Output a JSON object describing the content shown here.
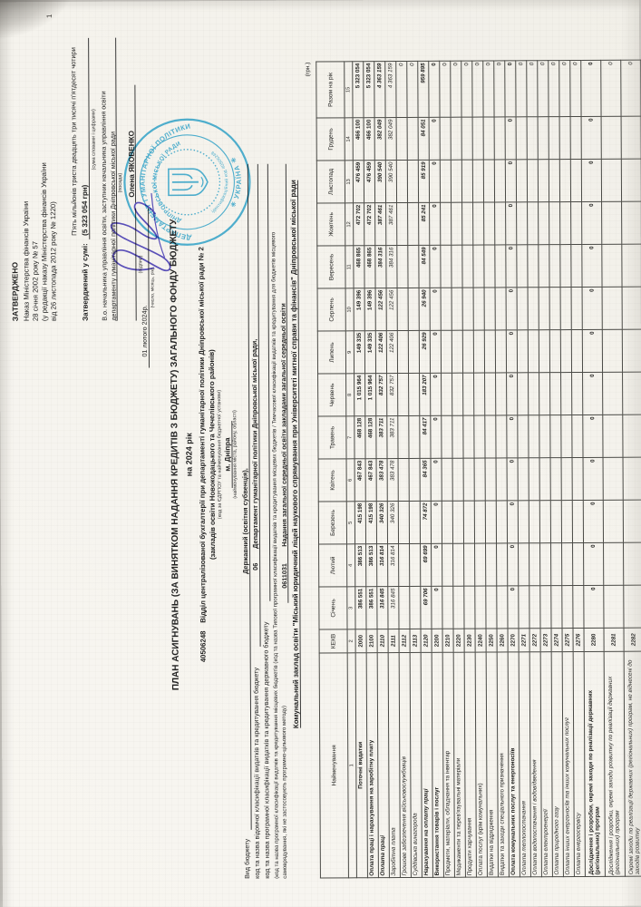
{
  "page": {
    "number": "1"
  },
  "approval": {
    "approved_label": "ЗАТВЕРДЖЕНО",
    "order_line1": "Наказ Міністерства фінансів України",
    "order_line2": "28 січня 2002 року № 57",
    "order_line3": "(у редакції наказу Міністерства фінансів України",
    "order_line4": "від 26 листопада 2012 року № 1220)",
    "approved_sum_label": "Затверджений у сумі:",
    "sum_words": "П'ять мільйонів триста двадцять три тисячі п'ятдесят чотири",
    "sum_figures": "(5 323 054 грн)",
    "sum_caption": "(сума словами і цифрами)",
    "position_line1": "В.о. начальника управління  освіти, заступник начальника управління  освіти",
    "position_line2": "департаменту гуманітарної політики Дніпровської міської ради",
    "position_caption": "(посада)",
    "signer_name": "Олена ЯКОВЕНКО",
    "signature_caption": "(підпис)",
    "date": "01 лютого 2024р.",
    "date_caption": "(число, місяць, рік)"
  },
  "title": {
    "line1": "ПЛАН АСИГНУВАНЬ (ЗА ВИНЯТКОМ НАДАННЯ КРЕДИТІВ З БЮДЖЕТУ) ЗАГАЛЬНОГО ФОНДУ БЮДЖЕТУ",
    "line2": "на 2024 рік",
    "edrpou": "40506248",
    "org": "Відділ централізованої бухгалтерії при департаменті гуманітарної політики Дніпровської міської ради № 2",
    "org2": "(закладів освіти Новокодацького та Чечелівського районів)",
    "org_caption": "(код за ЄДРПОУ та найменування бюджетної установи)",
    "city": "м. Дніпра",
    "city_caption": "(найменування міста, району, області)"
  },
  "classification": {
    "budget_type_label": "Вид бюджету",
    "budget_type_value": "Державний  (освітня субвенція),",
    "departmental_label": "код та назва відомчої класифікації видатків та кредитування бюджету",
    "departmental_code": "06",
    "departmental_value": "Департамент гуманітарної політики Дніпровської міської ради,",
    "program_state_label": "код та назва програмної класифікації видатків та кредитування державного бюджету",
    "note_line1": "(код та назва програмної класифікації видатків та кредитування місцевих бюджетів (код та назва Типової програмної класифікації видатків та кредитування місцевих бюджетів / Тимчасової класифікації видатків та кредитування для бюджетів місцевого",
    "note_line2": "самоврядування, які не застосовують програмно-цільового методу)",
    "program_code": "0611031",
    "program_value": "Надання загальної середньої освіти закладами загальної середньої освіти",
    "institution": "Комунальний заклад  освіти \"Міський юридичний ліцей наукового спрямування при Університеті митної справи та фінансів\" Дніпровської міської ради",
    "currency_note": "(грн.)"
  },
  "stamp": {
    "ring_outer_top": "ДЕПАРТАМЕНТ ГУМАНІТАРНОЇ ПОЛІТИКИ",
    "ring_outer_bottom": "✳ УКРАЇНА ✳",
    "ring_inner_top": "ДНІПРОВСЬКОЇ МІСЬКОЇ РАДИ",
    "ring_inner_bottom": "ідентифікаційний код 40506248",
    "color": "#2aa7d6"
  },
  "signature_ink_color": "#4a3fc0",
  "table": {
    "columns": [
      "Найменування",
      "КЕКВ",
      "Січень",
      "Лютий",
      "Березень",
      "Квітень",
      "Травень",
      "Червень",
      "Липень",
      "Серпень",
      "Вересень",
      "Жовтень",
      "Листопад",
      "Грудень",
      "Разом на рік"
    ],
    "column_numbers": [
      "1",
      "2",
      "3",
      "4",
      "5",
      "6",
      "7",
      "8",
      "9",
      "10",
      "11",
      "12",
      "13",
      "14",
      "15"
    ],
    "rows": [
      {
        "name": "Поточні видатки",
        "code": "2000",
        "style": "bold",
        "center": true,
        "tall": false,
        "values": [
          "386 551",
          "386 513",
          "415 198",
          "467 843",
          "468 128",
          "1 015 964",
          "149 335",
          "149 396",
          "468 865",
          "472 702",
          "476 459",
          "466 100"
        ],
        "total": "5 323 054"
      },
      {
        "name": "Оплата праці і нарахування на заробітну плату",
        "code": "2100",
        "style": "bold",
        "center": false,
        "tall": false,
        "values": [
          "386 551",
          "386 513",
          "415 198",
          "467 843",
          "468 128",
          "1 015 964",
          "149 335",
          "149 396",
          "468 865",
          "472 702",
          "476 459",
          "466 100"
        ],
        "total": "5 323 054"
      },
      {
        "name": "Оплата праці",
        "code": "2110",
        "style": "bolditalic",
        "center": false,
        "tall": false,
        "values": [
          "316 845",
          "316 814",
          "340 326",
          "383 478",
          "383 711",
          "832 757",
          "122 406",
          "122 456",
          "384 316",
          "387 461",
          "390 540",
          "382 049"
        ],
        "total": "4 363 159"
      },
      {
        "name": "Заробітна плата",
        "code": "2111",
        "style": "italic",
        "center": false,
        "tall": false,
        "values": [
          "316 845",
          "316 814",
          "340 326",
          "383 478",
          "383 711",
          "832 757",
          "122 406",
          "122 456",
          "384 316",
          "387 461",
          "390 540",
          "382 049"
        ],
        "total": "4 363 159"
      },
      {
        "name": "Грошове забезпечення військовослужбовців",
        "code": "2112",
        "style": "italic",
        "center": false,
        "tall": false,
        "values": [
          "",
          "",
          "",
          "",
          "",
          "",
          "",
          "",
          "",
          "",
          "",
          ""
        ],
        "total": "0"
      },
      {
        "name": "Суддівська винагорода",
        "code": "2113",
        "style": "italic",
        "center": false,
        "tall": false,
        "values": [
          "",
          "",
          "",
          "",
          "",
          "",
          "",
          "",
          "",
          "",
          "",
          ""
        ],
        "total": "0"
      },
      {
        "name": "Нарахування на оплату праці",
        "code": "2120",
        "style": "bolditalic",
        "center": false,
        "tall": false,
        "values": [
          "69 706",
          "69 699",
          "74 872",
          "84 365",
          "84 417",
          "183 207",
          "26 929",
          "26 940",
          "84 549",
          "85 241",
          "85 919",
          "84 051"
        ],
        "total": "959 895"
      },
      {
        "name": "Використання товарів і послуг",
        "code": "2200",
        "style": "bold",
        "center": false,
        "tall": false,
        "values": [
          "0",
          "0",
          "0",
          "0",
          "0",
          "0",
          "0",
          "0",
          "0",
          "0",
          "0",
          "0"
        ],
        "total": "0"
      },
      {
        "name": "Предмети, матеріали, обладнання та інвентар",
        "code": "2210",
        "style": "normal",
        "center": false,
        "tall": false,
        "values": [
          "",
          "",
          "",
          "",
          "",
          "",
          "",
          "",
          "",
          "",
          "",
          ""
        ],
        "total": "0"
      },
      {
        "name": "Медикаменти та перев'язувальні матеріали",
        "code": "2220",
        "style": "normal",
        "center": false,
        "tall": false,
        "values": [
          "",
          "",
          "",
          "",
          "",
          "",
          "",
          "",
          "",
          "",
          "",
          ""
        ],
        "total": "0"
      },
      {
        "name": "Продукти харчування",
        "code": "2230",
        "style": "normal",
        "center": false,
        "tall": false,
        "values": [
          "",
          "",
          "",
          "",
          "",
          "",
          "",
          "",
          "",
          "",
          "",
          ""
        ],
        "total": "0"
      },
      {
        "name": "Оплата послуг (крім комунальних)",
        "code": "2240",
        "style": "normal",
        "center": false,
        "tall": false,
        "values": [
          "",
          "",
          "",
          "",
          "",
          "",
          "",
          "",
          "",
          "",
          "",
          ""
        ],
        "total": "0"
      },
      {
        "name": "Видатки на відрядження",
        "code": "2250",
        "style": "normal",
        "center": false,
        "tall": false,
        "values": [
          "",
          "",
          "",
          "",
          "",
          "",
          "",
          "",
          "",
          "",
          "",
          ""
        ],
        "total": "0"
      },
      {
        "name": "Видатки та заходи спеціального призначення",
        "code": "2260",
        "style": "normal",
        "center": false,
        "tall": false,
        "values": [
          "",
          "",
          "",
          "",
          "",
          "",
          "",
          "",
          "",
          "",
          "",
          ""
        ],
        "total": "0"
      },
      {
        "name": "Оплата комунальних послуг та енергоносіїв",
        "code": "2270",
        "style": "bold",
        "center": false,
        "tall": false,
        "values": [
          "0",
          "0",
          "0",
          "0",
          "0",
          "0",
          "0",
          "0",
          "0",
          "0",
          "0",
          "0"
        ],
        "total": "0"
      },
      {
        "name": "Оплата теплопостачання",
        "code": "2271",
        "style": "italic",
        "center": false,
        "tall": false,
        "values": [
          "",
          "",
          "",
          "",
          "",
          "",
          "",
          "",
          "",
          "",
          "",
          ""
        ],
        "total": "0"
      },
      {
        "name": "Оплата водопостачання і водовідведення",
        "code": "2272",
        "style": "italic",
        "center": false,
        "tall": false,
        "values": [
          "",
          "",
          "",
          "",
          "",
          "",
          "",
          "",
          "",
          "",
          "",
          ""
        ],
        "total": "0"
      },
      {
        "name": "Оплата електроенергії",
        "code": "2273",
        "style": "italic",
        "center": false,
        "tall": false,
        "values": [
          "",
          "",
          "",
          "",
          "",
          "",
          "",
          "",
          "",
          "",
          "",
          ""
        ],
        "total": "0"
      },
      {
        "name": "Оплата природного газу",
        "code": "2274",
        "style": "italic",
        "center": false,
        "tall": false,
        "values": [
          "",
          "",
          "",
          "",
          "",
          "",
          "",
          "",
          "",
          "",
          "",
          ""
        ],
        "total": "0"
      },
      {
        "name": "Оплата інших енергоносіїв та інших комунальних послуг",
        "code": "2275",
        "style": "italic",
        "center": false,
        "tall": false,
        "values": [
          "",
          "",
          "",
          "",
          "",
          "",
          "",
          "",
          "",
          "",
          "",
          ""
        ],
        "total": "0"
      },
      {
        "name": "Оплата енергосервісу",
        "code": "2276",
        "style": "italic",
        "center": false,
        "tall": false,
        "values": [
          "",
          "",
          "",
          "",
          "",
          "",
          "",
          "",
          "",
          "",
          "",
          ""
        ],
        "total": "0"
      },
      {
        "name": "Дослідження і розробки, окремі заходи по реалізації державних (регіональних) програм",
        "code": "2280",
        "style": "bold",
        "center": false,
        "tall": true,
        "values": [
          "0",
          "0",
          "0",
          "0",
          "0",
          "0",
          "0",
          "0",
          "0",
          "0",
          "0",
          "0"
        ],
        "total": "0"
      },
      {
        "name": "Дослідження і розробки, окремі заходи розвитку по реалізації державних (регіональних) програм",
        "code": "2281",
        "style": "italic",
        "center": false,
        "tall": true,
        "values": [
          "",
          "",
          "",
          "",
          "",
          "",
          "",
          "",
          "",
          "",
          "",
          ""
        ],
        "total": "0"
      },
      {
        "name": "Окремі заходи по реалізації державних (регіональних) програм, не віднесені до заходів розвитку",
        "code": "2282",
        "style": "italic",
        "center": false,
        "tall": true,
        "values": [
          "",
          "",
          "",
          "",
          "",
          "",
          "",
          "",
          "",
          "",
          "",
          ""
        ],
        "total": "0"
      }
    ]
  }
}
